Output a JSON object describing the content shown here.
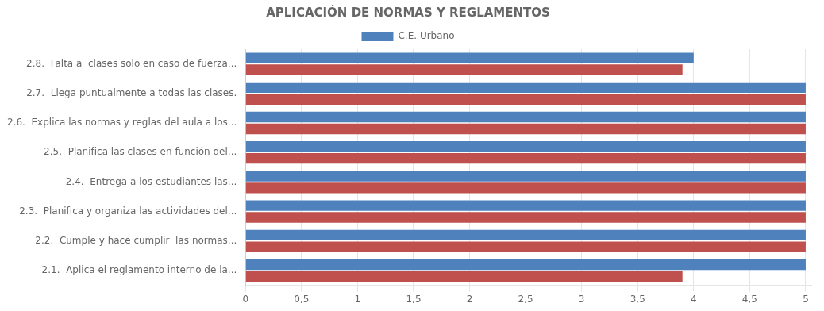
{
  "chart_data": {
    "type": "bar",
    "orientation": "horizontal",
    "title": "APLICACIÓN DE NORMAS Y REGLAMENTOS",
    "categories": [
      "2.1.  Aplica el reglamento interno de la...",
      "2.2.  Cumple y hace cumplir  las normas...",
      "2.3.  Planifica y organiza las actividades del...",
      "2.4.  Entrega a los estudiantes las...",
      "2.5.  Planifica las clases en función del...",
      "2.6.  Explica las normas y reglas del aula a los...",
      "2.7.  Llega puntualmente a todas las clases.",
      "2.8.  Falta a  clases solo en caso de fuerza..."
    ],
    "series": [
      {
        "color": "#C0504D",
        "values": [
          3.9,
          5.0,
          5.0,
          5.0,
          5.0,
          5.0,
          5.0,
          3.9
        ]
      },
      {
        "name": "C.E. Urbano",
        "color": "#4F81BD",
        "values": [
          5.0,
          5.0,
          5.0,
          5.0,
          5.0,
          5.0,
          5.0,
          4.0
        ]
      }
    ],
    "xlim": [
      0,
      5.05
    ],
    "xticks": [
      0,
      {
        "value": 0.5,
        "label": "0,5"
      },
      1,
      {
        "value": 1.5,
        "label": "1,5"
      },
      2,
      {
        "value": 2.5,
        "label": "2,5"
      },
      3,
      {
        "value": 3.5,
        "label": "3,5"
      },
      4,
      {
        "value": 4.5,
        "label": "4,5"
      },
      5
    ],
    "grid": true,
    "legend": "top"
  }
}
